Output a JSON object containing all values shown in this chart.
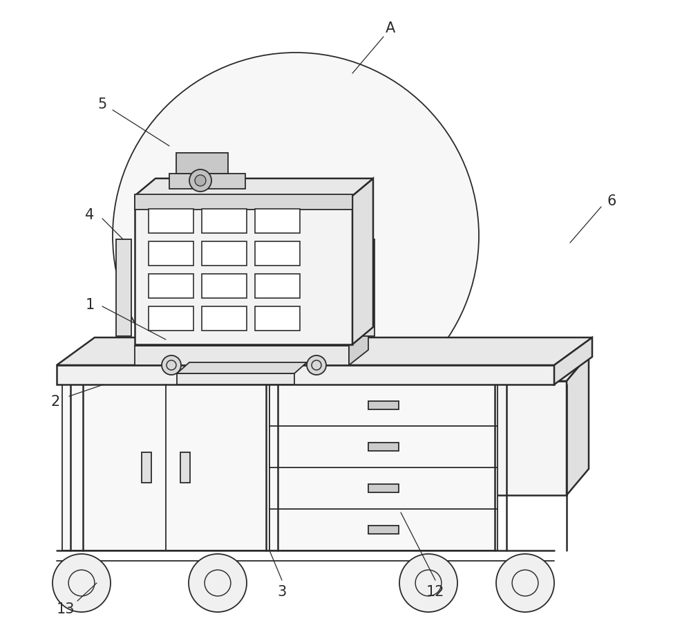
{
  "bg_color": "#ffffff",
  "line_color": "#2a2a2a",
  "lw": 1.3,
  "tlw": 1.8,
  "label_fontsize": 15
}
